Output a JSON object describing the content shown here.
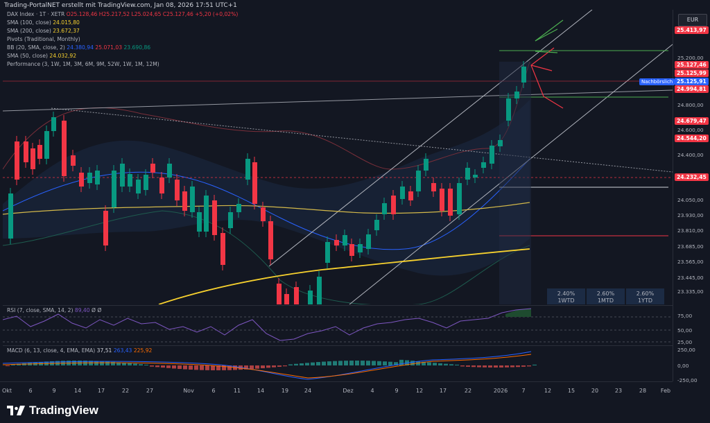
{
  "header": {
    "attribution": "Trading-PortalNET erstellt mit TradingView.com, Jan 08, 2026 17:51 UTC+1"
  },
  "legend": {
    "symbol": "DAX Index · 1T · XETR",
    "ohlc": "O25.128,46 H25.217,52 L25.024,65 C25.127,46 +5,20 (+0,02%)",
    "sma100_label": "SMA (100, close)",
    "sma100_value": "24.015,80",
    "sma200_label": "SMA (200, close)",
    "sma200_value": "23.672,37",
    "pivots": "Pivots (Traditional, Monthly)",
    "bb_label": "BB (20, SMA, close, 2)",
    "bb_mid": "24.380,94",
    "bb_up": "25.071,03",
    "bb_low": "23.690,86",
    "sma50_label": "SMA (50, close)",
    "sma50_value": "24.032,92",
    "performance": "Performance (3, 1W, 1M, 3M, 6M, 9M, 52W, 1W, 1M, 12M)"
  },
  "perf_table": [
    {
      "value": "2.40%",
      "label": "1WTD"
    },
    {
      "value": "2.60%",
      "label": "1MTD"
    },
    {
      "value": "2.60%",
      "label": "1YTD"
    }
  ],
  "rsi": {
    "label": "RSI (7, close, SMA, 14, 2)",
    "value": "89,40",
    "extra": "Ø Ø"
  },
  "macd": {
    "label": "MACD (6, 13, close, 4, EMA, EMA)",
    "v1": "37,51",
    "v2": "263,43",
    "v3": "225,92"
  },
  "currency": "EUR",
  "nachboerslich": "Nachbörslich",
  "price_axis": [
    "25.200,00",
    "24.800,00",
    "24.600,00",
    "24.400,00",
    "24.050,00",
    "23.930,00",
    "23.810,00",
    "23.685,00",
    "23.565,00",
    "23.445,00",
    "23.335,00"
  ],
  "price_tags": [
    {
      "text": "25.413,97",
      "color": "#f23645"
    },
    {
      "text": "25.127,46",
      "color": "#f23645"
    },
    {
      "text": "25.125,99",
      "color": "#f23645"
    },
    {
      "text": "25.125,91",
      "color": "#2962ff"
    },
    {
      "text": "24.994,81",
      "color": "#f23645"
    },
    {
      "text": "24.679,47",
      "color": "#f23645"
    },
    {
      "text": "24.544,20",
      "color": "#f23645"
    },
    {
      "text": "24.232,45",
      "color": "#f23645"
    }
  ],
  "rsi_axis": [
    "75,00",
    "50,00",
    "25,00"
  ],
  "macd_axis": [
    "250,00",
    "0,00",
    "-250,00"
  ],
  "time_axis": [
    "Okt",
    "6",
    "9",
    "14",
    "17",
    "22",
    "27",
    "Nov",
    "6",
    "11",
    "14",
    "19",
    "24",
    "Dez",
    "4",
    "9",
    "12",
    "17",
    "22",
    "2026",
    "7",
    "12",
    "15",
    "20",
    "23",
    "28",
    "Feb"
  ],
  "brand": "TradingView",
  "colors": {
    "up": "#089981",
    "down": "#f23645",
    "sma_yellow": "#f7d12e",
    "bb": "#2962ff"
  }
}
